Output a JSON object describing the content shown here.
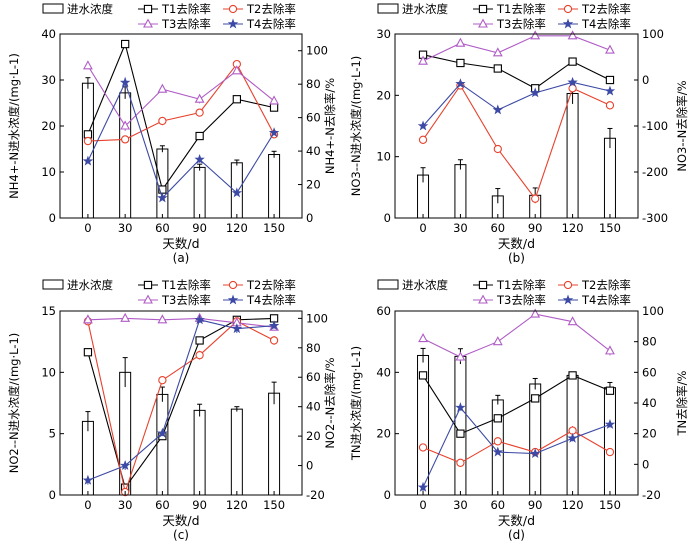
{
  "legend": {
    "bar": "进水浓度",
    "t1": "T1去除率",
    "t2": "T2去除率",
    "t3": "T3去除率",
    "t4": "T4去除率"
  },
  "colors": {
    "t1": "#000000",
    "t2": "#e8412c",
    "t3": "#b05cc6",
    "t4": "#3c4aa5",
    "bar_fill": "#ffffff",
    "bar_stroke": "#000000"
  },
  "chart_data": [
    {
      "id": "a",
      "type": "bar",
      "panel_label": "(a)",
      "xlabel": "天数/d",
      "ylabel_left": "NH4+-N进水浓度/(mg·L-1)",
      "ylabel_right": "NH4+-N去除率/%",
      "categories": [
        "0",
        "30",
        "60",
        "90",
        "120",
        "150"
      ],
      "ylim_left": [
        0,
        40
      ],
      "yticks_left": [
        0,
        10,
        20,
        30,
        40
      ],
      "ylim_right": [
        0,
        110
      ],
      "yticks_right": [
        0,
        20,
        40,
        60,
        80,
        100
      ],
      "bars": {
        "values": [
          29.3,
          27.2,
          15.0,
          11.0,
          12.0,
          13.8
        ],
        "errors": [
          1.2,
          1.3,
          0.7,
          0.7,
          0.6,
          0.7
        ]
      },
      "series": [
        {
          "key": "t1",
          "marker": "square",
          "values": [
            50,
            104,
            17,
            49,
            71,
            66
          ],
          "errors": [
            2,
            1.5,
            1.5,
            1,
            1,
            2
          ]
        },
        {
          "key": "t2",
          "marker": "circle",
          "values": [
            46,
            47,
            58,
            63,
            92,
            50
          ],
          "errors": [
            2,
            2,
            2.5,
            2,
            2,
            2
          ]
        },
        {
          "key": "t3",
          "marker": "triangle",
          "values": [
            91,
            55,
            77,
            71,
            88,
            70
          ],
          "errors": [
            1.5,
            3,
            1.5,
            2.5,
            2,
            2
          ]
        },
        {
          "key": "t4",
          "marker": "star",
          "values": [
            34,
            81,
            12,
            35,
            15,
            51
          ],
          "errors": [
            1,
            3,
            1,
            2,
            1.5,
            1.5
          ]
        }
      ]
    },
    {
      "id": "b",
      "type": "bar",
      "panel_label": "(b)",
      "xlabel": "天数/d",
      "ylabel_left": "NO3--N进水浓度/(mg·L-1)",
      "ylabel_right": "NO3--N去除率/%",
      "categories": [
        "0",
        "30",
        "60",
        "90",
        "120",
        "150"
      ],
      "ylim_left": [
        0,
        30
      ],
      "yticks_left": [
        0,
        10,
        20,
        30
      ],
      "ylim_right": [
        -300,
        100
      ],
      "yticks_right": [
        -300,
        -200,
        -100,
        0,
        100
      ],
      "bars": {
        "values": [
          7.0,
          8.7,
          3.6,
          3.7,
          20.3,
          13.0
        ],
        "errors": [
          1.2,
          0.8,
          1.2,
          1.2,
          1.7,
          1.6
        ]
      },
      "series": [
        {
          "key": "t1",
          "marker": "square",
          "values": [
            55,
            37,
            25,
            -18,
            40,
            0
          ],
          "errors": [
            5,
            5,
            5,
            5,
            3,
            5
          ]
        },
        {
          "key": "t2",
          "marker": "circle",
          "values": [
            -130,
            -12,
            -150,
            -258,
            -18,
            -55
          ],
          "errors": [
            6,
            5,
            4,
            10,
            5,
            5
          ]
        },
        {
          "key": "t3",
          "marker": "triangle",
          "values": [
            41,
            80,
            59,
            96,
            96,
            65
          ],
          "errors": [
            5,
            5,
            5,
            3,
            3,
            4
          ]
        },
        {
          "key": "t4",
          "marker": "star",
          "values": [
            -100,
            -8,
            -65,
            -28,
            -5,
            -24
          ],
          "errors": [
            5,
            5,
            4,
            6,
            4,
            5
          ]
        }
      ]
    },
    {
      "id": "c",
      "type": "bar",
      "panel_label": "(c)",
      "xlabel": "天数/d",
      "ylabel_left": "NO2--N进水浓度/(mg·L-1)",
      "ylabel_right": "NO2--N去除率/%",
      "categories": [
        "0",
        "30",
        "60",
        "90",
        "120",
        "150"
      ],
      "ylim_left": [
        0,
        15
      ],
      "yticks_left": [
        0,
        5,
        10,
        15
      ],
      "ylim_right": [
        -20,
        105
      ],
      "yticks_right": [
        -20,
        0,
        20,
        40,
        60,
        80,
        100
      ],
      "bars": {
        "values": [
          6.0,
          10.0,
          8.2,
          6.9,
          7.0,
          8.3
        ],
        "errors": [
          0.8,
          1.2,
          0.6,
          0.5,
          0.2,
          0.9
        ]
      },
      "series": [
        {
          "key": "t1",
          "marker": "square",
          "values": [
            77,
            -15,
            20,
            85,
            99,
            100
          ],
          "errors": [
            2,
            2,
            2,
            2,
            1,
            1
          ]
        },
        {
          "key": "t2",
          "marker": "circle",
          "values": [
            98,
            -18,
            58,
            75,
            98,
            85
          ],
          "errors": [
            2,
            2,
            2,
            3,
            2,
            3
          ]
        },
        {
          "key": "t3",
          "marker": "triangle",
          "values": [
            99,
            100,
            99,
            100,
            97,
            94
          ],
          "errors": [
            3,
            1,
            2,
            1,
            1,
            2
          ]
        },
        {
          "key": "t4",
          "marker": "star",
          "values": [
            -10,
            0,
            22,
            99,
            93,
            95
          ],
          "errors": [
            3,
            3,
            2,
            2,
            3,
            2
          ]
        }
      ]
    },
    {
      "id": "d",
      "type": "bar",
      "panel_label": "(d)",
      "xlabel": "天数/d",
      "ylabel_left": "TN进水浓度/(mg·L-1)",
      "ylabel_right": "TN去除率/%",
      "categories": [
        "0",
        "30",
        "60",
        "90",
        "120",
        "150"
      ],
      "ylim_left": [
        0,
        60
      ],
      "yticks_left": [
        0,
        20,
        40,
        60
      ],
      "ylim_right": [
        -20,
        100
      ],
      "yticks_right": [
        -20,
        0,
        20,
        40,
        60,
        80,
        100
      ],
      "bars": {
        "values": [
          45.5,
          45.2,
          31.0,
          36.2,
          39.0,
          35.0
        ],
        "errors": [
          2.3,
          2.5,
          1.5,
          1.8,
          1.0,
          1.7
        ]
      },
      "series": [
        {
          "key": "t1",
          "marker": "square",
          "values": [
            58,
            20,
            30,
            43,
            58,
            48
          ],
          "errors": [
            1.5,
            1,
            1.5,
            1,
            1.5,
            2
          ]
        },
        {
          "key": "t2",
          "marker": "circle",
          "values": [
            11,
            1,
            15,
            8,
            22,
            8
          ],
          "errors": [
            2,
            2,
            2,
            2,
            3,
            2
          ]
        },
        {
          "key": "t3",
          "marker": "triangle",
          "values": [
            82,
            70,
            80,
            98,
            93,
            74
          ],
          "errors": [
            2,
            3,
            2,
            1.5,
            1.5,
            3
          ]
        },
        {
          "key": "t4",
          "marker": "star",
          "values": [
            -15,
            37,
            8,
            7,
            17,
            26
          ],
          "errors": [
            3,
            2,
            1.5,
            1.5,
            2,
            2
          ]
        }
      ]
    }
  ]
}
